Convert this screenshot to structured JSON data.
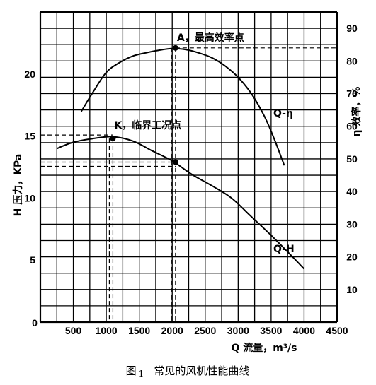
{
  "chart_data": {
    "type": "line",
    "caption": {
      "prefix": "图",
      "number": "1",
      "title": "常见的风机性能曲线"
    },
    "xlabel": "Q 流量，m³/s",
    "ylabel_left": "H 压力，KPa",
    "ylabel_right": "η 效率，%",
    "xlim": [
      0,
      4500
    ],
    "ylim_left": [
      0,
      25
    ],
    "ylim_right": [
      0,
      95
    ],
    "x_ticks": [
      "500",
      "1000",
      "1500",
      "2000",
      "2500",
      "3000",
      "3500",
      "4000",
      "4500"
    ],
    "x_zero_label": "0",
    "y_left_ticks": [
      "0",
      "5",
      "10",
      "15",
      "20"
    ],
    "y_right_ticks": [
      "10",
      "20",
      "30",
      "40",
      "50",
      "60",
      "70",
      "80",
      "90"
    ],
    "grid": true,
    "series": [
      {
        "name": "Q-η",
        "axis": "right",
        "x": [
          620,
          800,
          1000,
          1200,
          1400,
          1600,
          1800,
          2000,
          2200,
          2400,
          2600,
          2800,
          3000,
          3200,
          3400,
          3550,
          3700
        ],
        "y": [
          64.5,
          70.5,
          76.5,
          79.5,
          81.5,
          82.5,
          83.3,
          83.8,
          83.5,
          82.5,
          81,
          78.5,
          75,
          70,
          63,
          56,
          48
        ]
      },
      {
        "name": "Q-H",
        "axis": "left",
        "x": [
          250,
          500,
          800,
          1100,
          1400,
          1700,
          2000,
          2300,
          2600,
          2900,
          3200,
          3500,
          3800,
          4000
        ],
        "y": [
          14,
          14.5,
          14.8,
          14.95,
          14.6,
          13.8,
          13,
          11.9,
          11,
          10,
          8.5,
          7,
          5.4,
          4.3
        ]
      }
    ],
    "points": [
      {
        "label": "A，最高效率点",
        "x": 2050,
        "y": 84,
        "axis": "right"
      },
      {
        "label": "K，临界工况点",
        "x": 1100,
        "y": 14.8,
        "axis": "left"
      },
      {
        "label": "",
        "x": 2050,
        "y": 12.9,
        "axis": "left"
      }
    ],
    "series_labels": {
      "eta": "Q-η",
      "h": "Q-H"
    }
  }
}
